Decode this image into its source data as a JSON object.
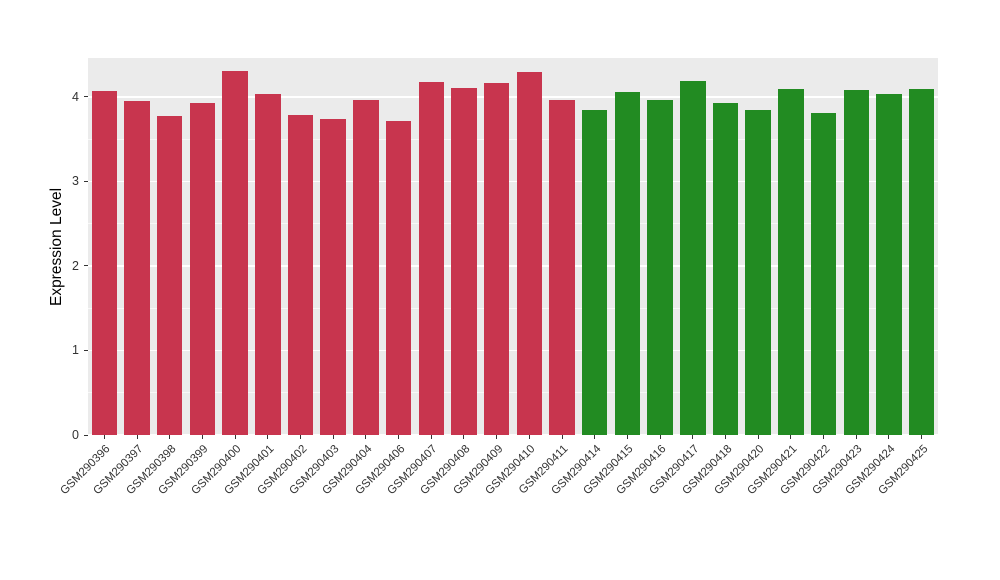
{
  "style": {
    "panel_bg": "#EBEBEB",
    "grid_major": "#FFFFFF",
    "grid_minor": "#F5F5F5",
    "axis_text": "#333333",
    "group_colors": {
      "left_group": "#C8354E",
      "right_group": "#228B22"
    }
  },
  "chart_data": {
    "type": "bar",
    "title": "",
    "xlabel": "",
    "ylabel": "Expression Level",
    "ylim": [
      0,
      4.46
    ],
    "yticks": [
      0,
      1,
      2,
      3,
      4
    ],
    "grid": true,
    "legend_position": "none",
    "categories": [
      "GSM290396",
      "GSM290397",
      "GSM290398",
      "GSM290399",
      "GSM290400",
      "GSM290401",
      "GSM290402",
      "GSM290403",
      "GSM290404",
      "GSM290406",
      "GSM290407",
      "GSM290408",
      "GSM290409",
      "GSM290410",
      "GSM290411",
      "GSM290414",
      "GSM290415",
      "GSM290416",
      "GSM290417",
      "GSM290418",
      "GSM290420",
      "GSM290421",
      "GSM290422",
      "GSM290423",
      "GSM290424",
      "GSM290425"
    ],
    "values": [
      4.07,
      3.95,
      3.77,
      3.93,
      4.31,
      4.04,
      3.79,
      3.74,
      3.96,
      3.71,
      4.18,
      4.1,
      4.16,
      4.3,
      3.96,
      3.85,
      4.06,
      3.96,
      4.19,
      3.93,
      3.85,
      4.09,
      3.81,
      4.08,
      4.04,
      4.09
    ],
    "colors": [
      "#C8354E",
      "#C8354E",
      "#C8354E",
      "#C8354E",
      "#C8354E",
      "#C8354E",
      "#C8354E",
      "#C8354E",
      "#C8354E",
      "#C8354E",
      "#C8354E",
      "#C8354E",
      "#C8354E",
      "#C8354E",
      "#C8354E",
      "#228B22",
      "#228B22",
      "#228B22",
      "#228B22",
      "#228B22",
      "#228B22",
      "#228B22",
      "#228B22",
      "#228B22",
      "#228B22",
      "#228B22"
    ]
  }
}
